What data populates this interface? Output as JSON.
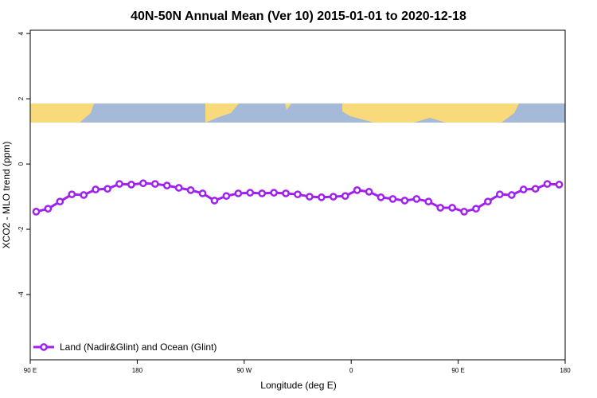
{
  "chart_data": {
    "type": "line",
    "title": "40N-50N Annual Mean (Ver 10)   2015-01-01 to 2020-12-18",
    "x_label": "Longitude (deg E)",
    "y_label": "XCO2 - MLO trend (ppm)",
    "xlim": [
      90,
      540
    ],
    "xticks": [
      {
        "value": 90,
        "label": "90 E"
      },
      {
        "value": 180,
        "label": "180"
      },
      {
        "value": 270,
        "label": "90 W"
      },
      {
        "value": 360,
        "label": "0"
      },
      {
        "value": 450,
        "label": "90 E"
      },
      {
        "value": 540,
        "label": "180"
      }
    ],
    "ylim": [
      -6,
      4.1
    ],
    "yticks": [
      -4,
      -2,
      0,
      2,
      4
    ],
    "x": [
      95,
      105,
      115,
      125,
      135,
      145,
      155,
      165,
      175,
      185,
      195,
      205,
      215,
      225,
      235,
      245,
      255,
      265,
      275,
      285,
      295,
      305,
      315,
      325,
      335,
      345,
      355,
      365,
      375,
      385,
      395,
      405,
      415,
      425,
      435,
      445,
      455,
      465,
      475,
      485,
      495,
      505,
      515,
      525,
      535
    ],
    "series": [
      {
        "name": "Land (Nadir&Glint) and Ocean (Glint)",
        "color": "#a020f0",
        "values": [
          -1.46,
          -1.37,
          -1.15,
          -0.93,
          -0.95,
          -0.78,
          -0.76,
          -0.61,
          -0.63,
          -0.59,
          -0.61,
          -0.66,
          -0.73,
          -0.8,
          -0.9,
          -1.12,
          -0.98,
          -0.9,
          -0.88,
          -0.9,
          -0.88,
          -0.9,
          -0.93,
          -1.0,
          -1.02,
          -1.0,
          -0.98,
          -0.8,
          -0.85,
          -1.02,
          -1.07,
          -1.12,
          -1.07,
          -1.15,
          -1.34,
          -1.34,
          -1.46,
          -1.37,
          -1.15,
          -0.93,
          -0.95,
          -0.78,
          -0.76,
          -0.61,
          -0.63
        ]
      }
    ],
    "legend": "bottom-left"
  }
}
